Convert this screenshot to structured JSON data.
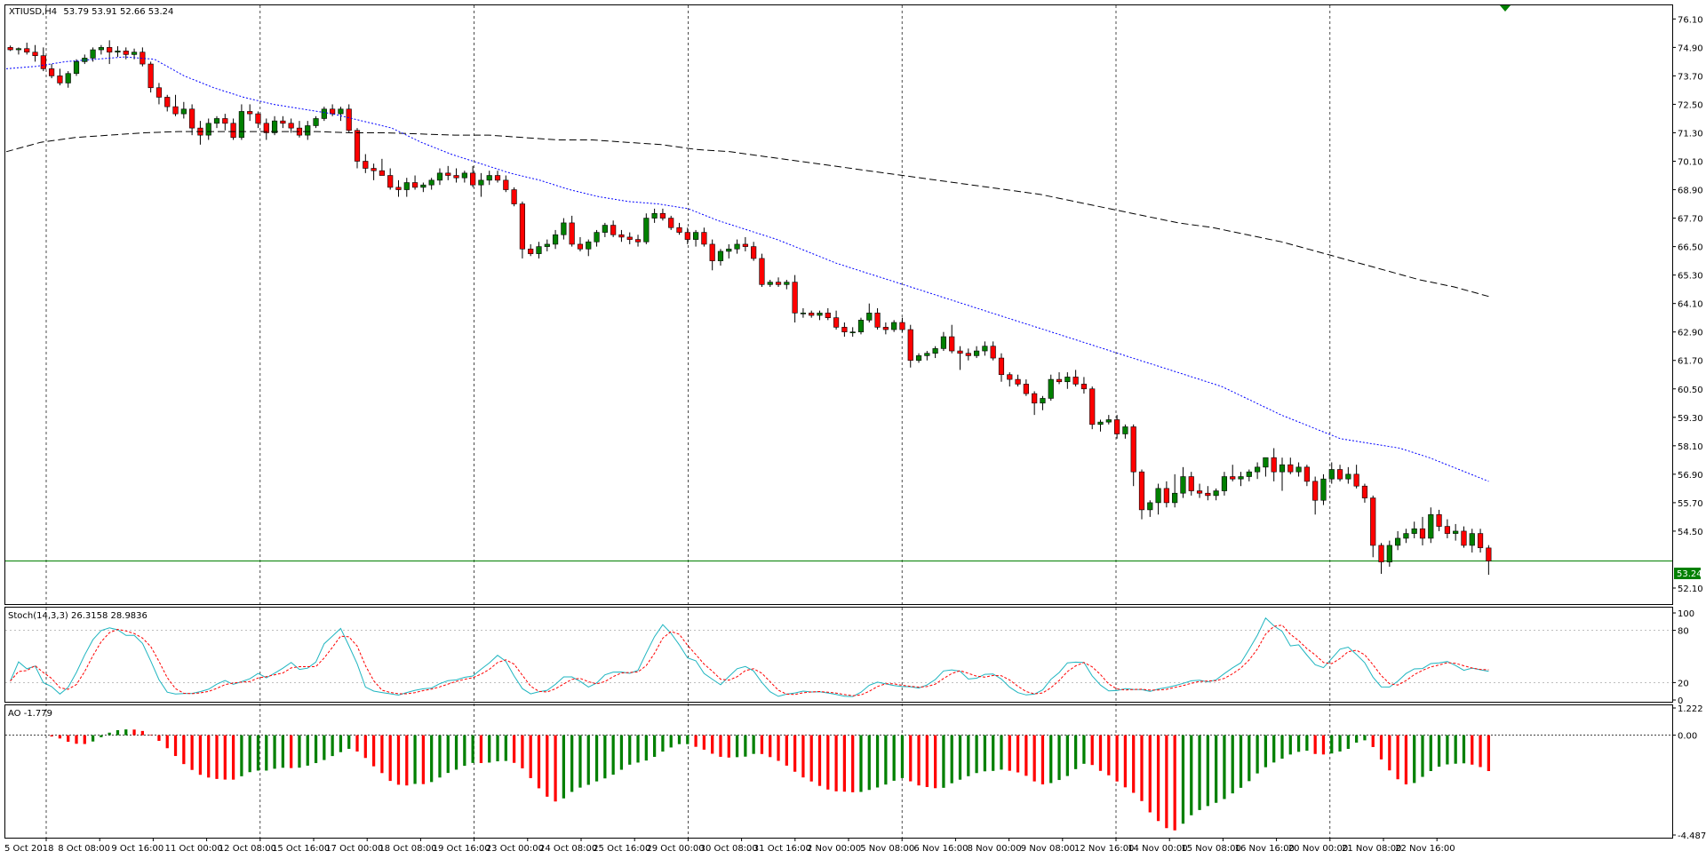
{
  "symbol": "XTIUSD,H4",
  "ohlc_text": "53.79 53.91 52.66 53.24",
  "current_price_label": "53.24",
  "colors": {
    "bull": "#008000",
    "bear": "#ff0000",
    "ma_fast": "#0000ff",
    "ma_slow": "#000000",
    "current_line": "#008000",
    "grid": "#000000",
    "stoch_main": "#1fb5c0",
    "stoch_signal": "#ff0000"
  },
  "main_yaxis_labels": [
    "76.10",
    "74.90",
    "73.70",
    "72.50",
    "71.30",
    "70.10",
    "68.90",
    "67.70",
    "66.50",
    "65.30",
    "64.10",
    "62.90",
    "61.70",
    "60.50",
    "59.30",
    "58.10",
    "56.90",
    "55.70",
    "54.50",
    "53.24",
    "52.10"
  ],
  "stoch_title": "Stoch(14,3,3) 26.3158 28.9836",
  "stoch_yaxis_labels": [
    "100",
    "80",
    "20",
    "0"
  ],
  "ao_title": "AO -1.779",
  "ao_yaxis_labels": [
    "1.222",
    "0.00",
    "-4.487"
  ],
  "x_labels": [
    "5 Oct 2018",
    "8 Oct 08:00",
    "9 Oct 16:00",
    "11 Oct 00:00",
    "12 Oct 08:00",
    "15 Oct 16:00",
    "17 Oct 00:00",
    "18 Oct 08:00",
    "19 Oct 16:00",
    "23 Oct 00:00",
    "24 Oct 08:00",
    "25 Oct 16:00",
    "29 Oct 00:00",
    "30 Oct 08:00",
    "31 Oct 16:00",
    "2 Nov 00:00",
    "5 Nov 08:00",
    "6 Nov 16:00",
    "8 Nov 00:00",
    "9 Nov 08:00",
    "12 Nov 16:00",
    "14 Nov 00:00",
    "15 Nov 08:00",
    "16 Nov 16:00",
    "20 Nov 00:00",
    "21 Nov 08:00",
    "22 Nov 16:00"
  ],
  "chart_data": {
    "type": "candlestick",
    "y_range": [
      51.5,
      76.6
    ],
    "candles": [
      [
        74.9,
        74.98,
        74.75,
        74.8
      ],
      [
        74.8,
        74.9,
        74.6,
        74.85
      ],
      [
        74.85,
        75.1,
        74.6,
        74.7
      ],
      [
        74.7,
        75.0,
        74.3,
        74.55
      ],
      [
        74.55,
        74.9,
        73.9,
        74.0
      ],
      [
        74.0,
        74.2,
        73.6,
        73.7
      ],
      [
        73.7,
        74.0,
        73.3,
        73.4
      ],
      [
        73.4,
        73.9,
        73.2,
        73.8
      ],
      [
        73.8,
        74.4,
        73.7,
        74.3
      ],
      [
        74.3,
        74.6,
        74.2,
        74.45
      ],
      [
        74.45,
        74.9,
        74.3,
        74.8
      ],
      [
        74.8,
        75.0,
        74.6,
        74.9
      ],
      [
        74.9,
        75.2,
        74.2,
        74.7
      ],
      [
        74.7,
        74.95,
        74.5,
        74.75
      ],
      [
        74.75,
        74.9,
        74.4,
        74.6
      ],
      [
        74.6,
        74.85,
        74.4,
        74.7
      ],
      [
        74.7,
        74.9,
        74.1,
        74.2
      ],
      [
        74.2,
        74.3,
        73.0,
        73.2
      ],
      [
        73.2,
        73.4,
        72.5,
        72.8
      ],
      [
        72.8,
        72.9,
        72.2,
        72.4
      ],
      [
        72.4,
        72.9,
        72.0,
        72.1
      ],
      [
        72.1,
        72.6,
        71.9,
        72.3
      ],
      [
        72.3,
        72.5,
        71.2,
        71.5
      ],
      [
        71.5,
        71.8,
        70.8,
        71.2
      ],
      [
        71.2,
        71.9,
        71.0,
        71.7
      ],
      [
        71.7,
        72.0,
        71.5,
        71.9
      ],
      [
        71.9,
        72.1,
        71.4,
        71.7
      ],
      [
        71.7,
        71.9,
        71.0,
        71.1
      ],
      [
        71.1,
        72.5,
        71.0,
        72.2
      ],
      [
        72.2,
        72.5,
        71.8,
        72.1
      ],
      [
        72.1,
        72.2,
        71.5,
        71.7
      ],
      [
        71.7,
        71.9,
        71.0,
        71.3
      ],
      [
        71.3,
        72.0,
        71.2,
        71.8
      ],
      [
        71.8,
        72.0,
        71.5,
        71.7
      ],
      [
        71.7,
        71.9,
        71.3,
        71.5
      ],
      [
        71.5,
        71.8,
        71.1,
        71.2
      ],
      [
        71.2,
        71.8,
        71.0,
        71.6
      ],
      [
        71.6,
        72.0,
        71.5,
        71.9
      ],
      [
        71.9,
        72.4,
        71.8,
        72.3
      ],
      [
        72.3,
        72.5,
        72.0,
        72.1
      ],
      [
        72.1,
        72.4,
        71.8,
        72.3
      ],
      [
        72.3,
        72.5,
        71.3,
        71.4
      ],
      [
        71.4,
        71.5,
        69.8,
        70.1
      ],
      [
        70.1,
        70.4,
        69.6,
        69.8
      ],
      [
        69.8,
        70.0,
        69.3,
        69.7
      ],
      [
        69.7,
        70.2,
        69.5,
        69.5
      ],
      [
        69.5,
        69.8,
        68.9,
        69.0
      ],
      [
        69.0,
        69.3,
        68.6,
        68.9
      ],
      [
        68.9,
        69.4,
        68.6,
        69.2
      ],
      [
        69.2,
        69.5,
        68.9,
        69.0
      ],
      [
        69.0,
        69.2,
        68.8,
        69.1
      ],
      [
        69.1,
        69.4,
        68.9,
        69.3
      ],
      [
        69.3,
        69.8,
        69.1,
        69.6
      ],
      [
        69.6,
        69.9,
        69.3,
        69.5
      ],
      [
        69.5,
        69.8,
        69.2,
        69.4
      ],
      [
        69.4,
        69.7,
        69.2,
        69.6
      ],
      [
        69.6,
        69.9,
        69.0,
        69.1
      ],
      [
        69.1,
        69.6,
        68.6,
        69.3
      ],
      [
        69.3,
        69.7,
        69.1,
        69.5
      ],
      [
        69.5,
        69.7,
        69.2,
        69.3
      ],
      [
        69.3,
        69.5,
        68.8,
        68.9
      ],
      [
        68.9,
        69.0,
        68.2,
        68.3
      ],
      [
        68.3,
        68.4,
        66.0,
        66.4
      ],
      [
        66.4,
        66.6,
        66.1,
        66.2
      ],
      [
        66.2,
        66.7,
        66.0,
        66.5
      ],
      [
        66.5,
        66.8,
        66.3,
        66.6
      ],
      [
        66.6,
        67.2,
        66.4,
        67.0
      ],
      [
        67.0,
        67.7,
        66.8,
        67.5
      ],
      [
        67.5,
        67.8,
        66.5,
        66.6
      ],
      [
        66.6,
        66.9,
        66.3,
        66.4
      ],
      [
        66.4,
        66.8,
        66.1,
        66.7
      ],
      [
        66.7,
        67.2,
        66.5,
        67.1
      ],
      [
        67.1,
        67.5,
        66.9,
        67.4
      ],
      [
        67.4,
        67.6,
        66.9,
        67.0
      ],
      [
        67.0,
        67.2,
        66.7,
        66.9
      ],
      [
        66.9,
        67.1,
        66.6,
        66.8
      ],
      [
        66.8,
        67.0,
        66.5,
        66.7
      ],
      [
        66.7,
        67.9,
        66.6,
        67.7
      ],
      [
        67.7,
        68.1,
        67.5,
        67.9
      ],
      [
        67.9,
        68.1,
        67.6,
        67.7
      ],
      [
        67.7,
        67.8,
        67.2,
        67.3
      ],
      [
        67.3,
        67.5,
        67.0,
        67.1
      ],
      [
        67.1,
        67.3,
        66.6,
        66.8
      ],
      [
        66.8,
        67.2,
        66.5,
        67.1
      ],
      [
        67.1,
        67.3,
        66.5,
        66.6
      ],
      [
        66.6,
        66.8,
        65.5,
        65.9
      ],
      [
        65.9,
        66.4,
        65.7,
        66.3
      ],
      [
        66.3,
        66.6,
        66.0,
        66.4
      ],
      [
        66.4,
        66.8,
        66.2,
        66.6
      ],
      [
        66.6,
        66.9,
        66.3,
        66.5
      ],
      [
        66.5,
        66.7,
        65.9,
        66.0
      ],
      [
        66.0,
        66.2,
        64.8,
        64.9
      ],
      [
        64.9,
        65.1,
        64.8,
        65.0
      ],
      [
        65.0,
        65.2,
        64.8,
        64.9
      ],
      [
        64.9,
        65.1,
        64.7,
        65.0
      ],
      [
        65.0,
        65.3,
        63.3,
        63.7
      ],
      [
        63.7,
        63.9,
        63.5,
        63.7
      ],
      [
        63.7,
        63.8,
        63.5,
        63.6
      ],
      [
        63.6,
        63.8,
        63.4,
        63.7
      ],
      [
        63.7,
        63.9,
        63.4,
        63.5
      ],
      [
        63.5,
        63.8,
        63.0,
        63.1
      ],
      [
        63.1,
        63.3,
        62.7,
        62.9
      ],
      [
        62.9,
        63.1,
        62.7,
        62.9
      ],
      [
        62.9,
        63.5,
        62.8,
        63.4
      ],
      [
        63.4,
        64.1,
        63.3,
        63.7
      ],
      [
        63.7,
        63.9,
        63.0,
        63.1
      ],
      [
        63.1,
        63.3,
        62.8,
        63.0
      ],
      [
        63.0,
        63.4,
        62.9,
        63.3
      ],
      [
        63.3,
        63.5,
        62.9,
        63.0
      ],
      [
        63.0,
        63.2,
        61.4,
        61.7
      ],
      [
        61.7,
        62.0,
        61.6,
        61.9
      ],
      [
        61.9,
        62.1,
        61.7,
        62.0
      ],
      [
        62.0,
        62.3,
        61.8,
        62.2
      ],
      [
        62.2,
        62.9,
        62.1,
        62.7
      ],
      [
        62.7,
        63.2,
        62.0,
        62.1
      ],
      [
        62.1,
        62.3,
        61.3,
        62.0
      ],
      [
        62.0,
        62.2,
        61.7,
        61.9
      ],
      [
        61.9,
        62.3,
        61.8,
        62.1
      ],
      [
        62.1,
        62.5,
        61.9,
        62.3
      ],
      [
        62.3,
        62.5,
        61.7,
        61.8
      ],
      [
        61.8,
        62.0,
        60.8,
        61.1
      ],
      [
        61.1,
        61.2,
        60.6,
        60.9
      ],
      [
        60.9,
        61.1,
        60.6,
        60.7
      ],
      [
        60.7,
        60.9,
        60.2,
        60.3
      ],
      [
        60.3,
        60.4,
        59.4,
        59.9
      ],
      [
        59.9,
        60.2,
        59.6,
        60.1
      ],
      [
        60.1,
        61.1,
        60.0,
        60.9
      ],
      [
        60.9,
        61.2,
        60.7,
        60.8
      ],
      [
        60.8,
        61.2,
        60.5,
        61.0
      ],
      [
        61.0,
        61.3,
        60.6,
        60.7
      ],
      [
        60.7,
        61.0,
        60.3,
        60.5
      ],
      [
        60.5,
        60.6,
        58.8,
        59.0
      ],
      [
        59.0,
        59.2,
        58.7,
        59.1
      ],
      [
        59.1,
        59.4,
        59.0,
        59.2
      ],
      [
        59.2,
        59.4,
        58.4,
        58.6
      ],
      [
        58.6,
        59.0,
        58.4,
        58.9
      ],
      [
        58.9,
        59.0,
        56.4,
        57.0
      ],
      [
        57.0,
        57.1,
        55.0,
        55.4
      ],
      [
        55.4,
        55.8,
        55.1,
        55.7
      ],
      [
        55.7,
        56.5,
        55.2,
        56.3
      ],
      [
        56.3,
        56.6,
        55.5,
        55.7
      ],
      [
        55.7,
        56.9,
        55.5,
        56.1
      ],
      [
        56.1,
        57.2,
        55.9,
        56.8
      ],
      [
        56.8,
        57.0,
        56.0,
        56.2
      ],
      [
        56.2,
        56.5,
        55.9,
        56.1
      ],
      [
        56.1,
        56.4,
        55.8,
        56.0
      ],
      [
        56.0,
        56.3,
        55.8,
        56.2
      ],
      [
        56.2,
        57.0,
        56.0,
        56.8
      ],
      [
        56.8,
        57.3,
        56.6,
        56.7
      ],
      [
        56.7,
        57.0,
        56.4,
        56.8
      ],
      [
        56.8,
        57.1,
        56.6,
        57.0
      ],
      [
        57.0,
        57.4,
        56.7,
        57.2
      ],
      [
        57.2,
        57.5,
        56.8,
        57.6
      ],
      [
        57.6,
        58.0,
        56.6,
        57.0
      ],
      [
        57.0,
        57.6,
        56.2,
        57.3
      ],
      [
        57.3,
        57.6,
        56.9,
        57.0
      ],
      [
        57.0,
        57.4,
        56.8,
        57.2
      ],
      [
        57.2,
        57.3,
        56.4,
        56.6
      ],
      [
        56.6,
        56.8,
        55.2,
        55.8
      ],
      [
        55.8,
        56.9,
        55.6,
        56.7
      ],
      [
        56.7,
        57.4,
        56.5,
        57.1
      ],
      [
        57.1,
        57.3,
        56.6,
        56.7
      ],
      [
        56.7,
        57.2,
        56.5,
        56.9
      ],
      [
        56.9,
        57.3,
        56.3,
        56.4
      ],
      [
        56.4,
        56.5,
        55.7,
        55.9
      ],
      [
        55.9,
        56.0,
        53.4,
        53.9
      ],
      [
        53.9,
        54.0,
        52.7,
        53.2
      ],
      [
        53.2,
        54.1,
        53.0,
        53.9
      ],
      [
        53.9,
        54.5,
        53.7,
        54.2
      ],
      [
        54.2,
        54.6,
        54.0,
        54.4
      ],
      [
        54.4,
        54.9,
        54.2,
        54.6
      ],
      [
        54.6,
        55.1,
        53.9,
        54.2
      ],
      [
        54.2,
        55.5,
        54.0,
        55.2
      ],
      [
        55.2,
        55.4,
        54.5,
        54.7
      ],
      [
        54.7,
        55.0,
        54.2,
        54.4
      ],
      [
        54.4,
        54.8,
        54.1,
        54.5
      ],
      [
        54.5,
        54.7,
        53.8,
        53.9
      ],
      [
        53.9,
        54.6,
        53.6,
        54.4
      ],
      [
        54.4,
        54.6,
        53.6,
        53.8
      ],
      [
        53.79,
        53.91,
        52.66,
        53.24
      ]
    ],
    "ma_fast": [
      74.0,
      74.1,
      74.3,
      74.4,
      74.5,
      74.4,
      73.7,
      73.2,
      72.8,
      72.5,
      72.3,
      72.1,
      71.8,
      71.5,
      70.9,
      70.4,
      70.0,
      69.6,
      69.3,
      68.9,
      68.6,
      68.4,
      68.3,
      68.1,
      67.6,
      67.2,
      66.8,
      66.3,
      65.8,
      65.4,
      65.0,
      64.6,
      64.2,
      63.8,
      63.4,
      63.0,
      62.6,
      62.2,
      61.8,
      61.4,
      61.0,
      60.6,
      60.0,
      59.4,
      58.9,
      58.4,
      58.2,
      58.0,
      57.6,
      57.1,
      56.6
    ],
    "ma_slow": [
      70.5,
      70.9,
      71.1,
      71.2,
      71.3,
      71.35,
      71.35,
      71.35,
      71.35,
      71.35,
      71.3,
      71.3,
      71.25,
      71.2,
      71.2,
      71.1,
      71.0,
      71.0,
      70.9,
      70.8,
      70.6,
      70.5,
      70.3,
      70.1,
      69.9,
      69.7,
      69.5,
      69.3,
      69.1,
      68.9,
      68.7,
      68.4,
      68.1,
      67.8,
      67.5,
      67.3,
      67.0,
      66.7,
      66.3,
      65.9,
      65.5,
      65.1,
      64.8,
      64.4
    ]
  }
}
